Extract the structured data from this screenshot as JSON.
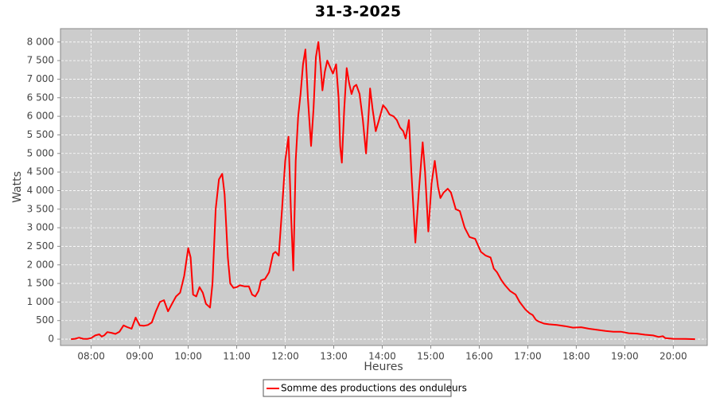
{
  "chart_data": {
    "type": "line",
    "title": "31-3-2025",
    "x_label": "Heures",
    "y_label": "Watts",
    "grid": true,
    "xlim": [
      "07:22",
      "20:42"
    ],
    "xticks": [
      "08:00",
      "09:00",
      "10:00",
      "11:00",
      "12:00",
      "13:00",
      "14:00",
      "15:00",
      "16:00",
      "17:00",
      "18:00",
      "19:00",
      "20:00"
    ],
    "ylim": [
      -170,
      8360
    ],
    "yticks": [
      0,
      500,
      {
        "value": 1000,
        "label": "1 000"
      },
      {
        "value": 1500,
        "label": "1 500"
      },
      {
        "value": 2000,
        "label": "2 000"
      },
      {
        "value": 2500,
        "label": "2 500"
      },
      {
        "value": 3000,
        "label": "3 000"
      },
      {
        "value": 3500,
        "label": "3 500"
      },
      {
        "value": 4000,
        "label": "4 000"
      },
      {
        "value": 4500,
        "label": "4 500"
      },
      {
        "value": 5000,
        "label": "5 000"
      },
      {
        "value": 5500,
        "label": "5 500"
      },
      {
        "value": 6000,
        "label": "6 000"
      },
      {
        "value": 6500,
        "label": "6 500"
      },
      {
        "value": 7000,
        "label": "7 000"
      },
      {
        "value": 7500,
        "label": "7 500"
      },
      {
        "value": 8000,
        "label": "8 000"
      }
    ],
    "x": [
      "07:35",
      "07:40",
      "07:45",
      "07:50",
      "07:55",
      "08:00",
      "08:05",
      "08:10",
      "08:13",
      "08:16",
      "08:20",
      "08:25",
      "08:30",
      "08:35",
      "08:40",
      "08:45",
      "08:50",
      "08:55",
      "09:00",
      "09:05",
      "09:10",
      "09:15",
      "09:20",
      "09:25",
      "09:30",
      "09:35",
      "09:40",
      "09:45",
      "09:50",
      "09:55",
      "10:00",
      "10:03",
      "10:06",
      "10:10",
      "10:14",
      "10:18",
      "10:22",
      "10:27",
      "10:30",
      "10:34",
      "10:38",
      "10:42",
      "10:45",
      "10:49",
      "10:52",
      "10:56",
      "11:00",
      "11:04",
      "11:10",
      "11:15",
      "11:19",
      "11:23",
      "11:27",
      "11:30",
      "11:35",
      "11:40",
      "11:45",
      "11:48",
      "11:52",
      "11:56",
      "12:00",
      "12:04",
      "12:07",
      "12:10",
      "12:13",
      "12:16",
      "12:19",
      "12:22",
      "12:25",
      "12:28",
      "12:32",
      "12:35",
      "12:38",
      "12:41",
      "12:44",
      "12:46",
      "12:49",
      "12:52",
      "12:56",
      "12:59",
      "13:03",
      "13:06",
      "13:08",
      "13:10",
      "13:13",
      "13:16",
      "13:19",
      "13:22",
      "13:25",
      "13:28",
      "13:32",
      "13:36",
      "13:40",
      "13:43",
      "13:45",
      "13:48",
      "13:52",
      "13:56",
      "14:01",
      "14:05",
      "14:09",
      "14:14",
      "14:18",
      "14:22",
      "14:26",
      "14:29",
      "14:33",
      "14:36",
      "14:41",
      "14:45",
      "14:50",
      "14:53",
      "14:57",
      "15:01",
      "15:05",
      "15:09",
      "15:12",
      "15:16",
      "15:21",
      "15:25",
      "15:31",
      "15:36",
      "15:42",
      "15:48",
      "15:55",
      "16:02",
      "16:08",
      "16:14",
      "16:18",
      "16:22",
      "16:27",
      "16:32",
      "16:38",
      "16:45",
      "16:50",
      "16:57",
      "17:02",
      "17:06",
      "17:10",
      "17:13",
      "17:20",
      "17:26",
      "17:36",
      "17:46",
      "17:56",
      "18:06",
      "18:16",
      "18:26",
      "18:36",
      "18:46",
      "18:55",
      "19:05",
      "19:15",
      "19:25",
      "19:35",
      "19:42",
      "19:47",
      "19:50",
      "20:00",
      "20:15",
      "20:27"
    ],
    "series": [
      {
        "name": "Somme des productions des onduleurs",
        "color": "#ff0000",
        "values": [
          0,
          10,
          40,
          10,
          5,
          30,
          100,
          130,
          70,
          100,
          190,
          170,
          140,
          200,
          370,
          320,
          280,
          580,
          370,
          360,
          380,
          450,
          750,
          1000,
          1050,
          750,
          950,
          1150,
          1250,
          1700,
          2450,
          2200,
          1200,
          1150,
          1400,
          1250,
          950,
          850,
          1500,
          3500,
          4300,
          4450,
          3900,
          2200,
          1500,
          1380,
          1400,
          1450,
          1420,
          1420,
          1200,
          1150,
          1300,
          1580,
          1620,
          1800,
          2300,
          2350,
          2250,
          3500,
          4800,
          5450,
          3500,
          1850,
          4800,
          6000,
          6600,
          7400,
          7800,
          6500,
          5200,
          6200,
          7600,
          8000,
          7300,
          6700,
          7200,
          7500,
          7300,
          7150,
          7400,
          6500,
          5200,
          4750,
          6200,
          7300,
          6900,
          6600,
          6800,
          6850,
          6600,
          5900,
          5000,
          6000,
          6750,
          6200,
          5600,
          5900,
          6300,
          6200,
          6050,
          6000,
          5900,
          5700,
          5600,
          5400,
          5900,
          4500,
          2600,
          3900,
          5300,
          4500,
          2900,
          4200,
          4800,
          4100,
          3800,
          3950,
          4050,
          3950,
          3500,
          3450,
          3000,
          2750,
          2700,
          2350,
          2250,
          2200,
          1900,
          1800,
          1600,
          1450,
          1300,
          1200,
          1000,
          800,
          700,
          650,
          520,
          480,
          420,
          400,
          380,
          350,
          310,
          320,
          280,
          250,
          220,
          200,
          200,
          160,
          150,
          120,
          100,
          60,
          80,
          30,
          10,
          5,
          0
        ]
      }
    ]
  }
}
